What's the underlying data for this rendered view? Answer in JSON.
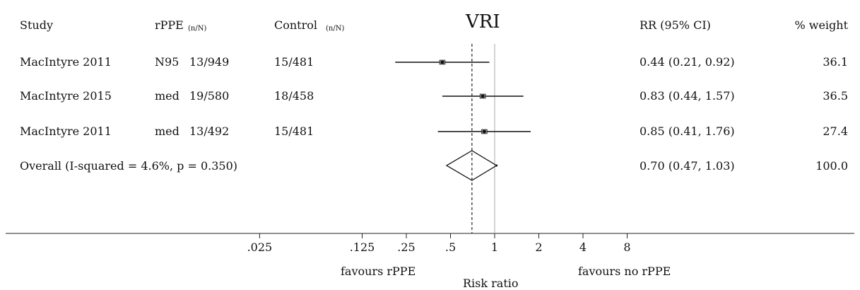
{
  "chart_data": {
    "type": "forest",
    "title": "VRI",
    "headers": {
      "study": "Study",
      "rppe": "rPPE",
      "rppe_unit": "(n/N)",
      "control": "Control",
      "control_unit": "(n/N)",
      "rr": "RR (95% CI)",
      "weight": "% weight"
    },
    "studies": [
      {
        "study": "MacIntyre 2011",
        "type": "N95",
        "rppe": "13/949",
        "control": "15/481",
        "rr": 0.44,
        "lo": 0.21,
        "hi": 0.92,
        "rr_text": "0.44 (0.21, 0.92)",
        "weight": "36.1"
      },
      {
        "study": "MacIntyre 2015",
        "type": "med",
        "rppe": "19/580",
        "control": "18/458",
        "rr": 0.83,
        "lo": 0.44,
        "hi": 1.57,
        "rr_text": "0.83 (0.44, 1.57)",
        "weight": "36.5"
      },
      {
        "study": "MacIntyre 2011",
        "type": "med",
        "rppe": "13/492",
        "control": "15/481",
        "rr": 0.85,
        "lo": 0.41,
        "hi": 1.76,
        "rr_text": "0.85 (0.41, 1.76)",
        "weight": "27.4"
      }
    ],
    "overall": {
      "label": "Overall  (I-squared = 4.6%, p = 0.350)",
      "rr": 0.7,
      "lo": 0.47,
      "hi": 1.03,
      "rr_text": "0.70 (0.47, 1.03)",
      "weight": "100.0"
    },
    "x_scale": "log",
    "xticks": [
      {
        "value": 0.025,
        "label": ".025"
      },
      {
        "value": 0.125,
        "label": ".125"
      },
      {
        "value": 0.25,
        "label": ".25"
      },
      {
        "value": 0.5,
        "label": ".5"
      },
      {
        "value": 1,
        "label": "1"
      },
      {
        "value": 2,
        "label": "2"
      },
      {
        "value": 4,
        "label": "4"
      },
      {
        "value": 8,
        "label": "8"
      }
    ],
    "favours_left": "favours rPPE",
    "favours_right": "favours no rPPE",
    "xlabel": "Risk ratio"
  }
}
